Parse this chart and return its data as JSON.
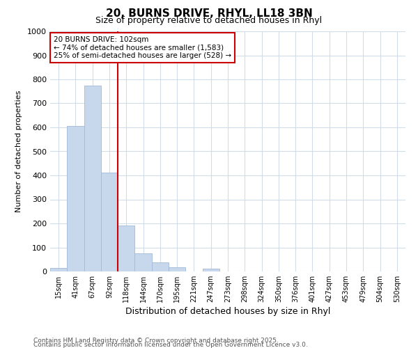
{
  "title1": "20, BURNS DRIVE, RHYL, LL18 3BN",
  "title2": "Size of property relative to detached houses in Rhyl",
  "xlabel": "Distribution of detached houses by size in Rhyl",
  "ylabel": "Number of detached properties",
  "bar_labels": [
    "15sqm",
    "41sqm",
    "67sqm",
    "92sqm",
    "118sqm",
    "144sqm",
    "170sqm",
    "195sqm",
    "221sqm",
    "247sqm",
    "273sqm",
    "298sqm",
    "324sqm",
    "350sqm",
    "376sqm",
    "401sqm",
    "427sqm",
    "453sqm",
    "479sqm",
    "504sqm",
    "530sqm"
  ],
  "bar_values": [
    15,
    607,
    773,
    413,
    192,
    76,
    38,
    18,
    0,
    12,
    0,
    0,
    0,
    0,
    0,
    0,
    0,
    0,
    0,
    0,
    0
  ],
  "bar_color": "#c8d8ec",
  "bar_edgecolor": "#a0b8d8",
  "vline_x": 3.5,
  "vline_color": "#cc0000",
  "annotation_text": "20 BURNS DRIVE: 102sqm\n← 74% of detached houses are smaller (1,583)\n25% of semi-detached houses are larger (528) →",
  "annotation_box_facecolor": "#ffffff",
  "annotation_box_edgecolor": "#cc0000",
  "ylim": [
    0,
    1000
  ],
  "yticks": [
    0,
    100,
    200,
    300,
    400,
    500,
    600,
    700,
    800,
    900,
    1000
  ],
  "footnote1": "Contains HM Land Registry data © Crown copyright and database right 2025.",
  "footnote2": "Contains public sector information licensed under the Open Government Licence v3.0.",
  "bg_color": "#ffffff",
  "grid_color": "#d0dce8",
  "title1_fontsize": 11,
  "title2_fontsize": 9,
  "xlabel_fontsize": 9,
  "ylabel_fontsize": 8,
  "footnote_fontsize": 6.5,
  "footnote_color": "#555555"
}
